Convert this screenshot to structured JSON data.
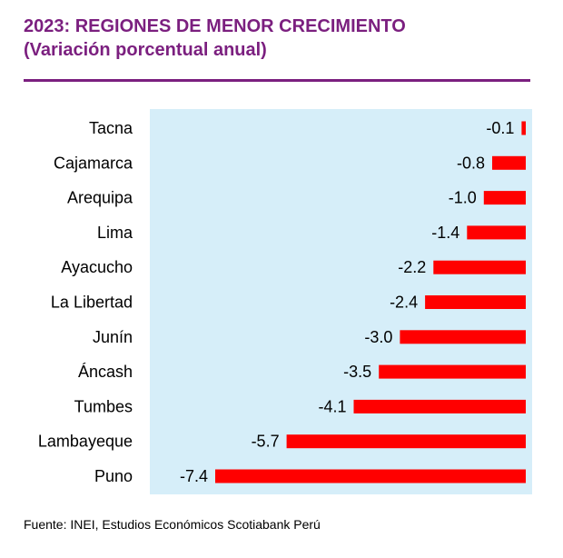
{
  "header": {
    "title_line1": "2023: REGIONES DE MENOR CRECIMIENTO",
    "title_line2": "(Variación porcentual anual)"
  },
  "source": "Fuente: INEI, Estudios Económicos Scotiabank Perú",
  "colors": {
    "title": "#7b1f7f",
    "bar": "#ff0000",
    "plot_background": "#d6eef9"
  },
  "chart_data": {
    "type": "bar",
    "orientation": "horizontal",
    "title": "2023: REGIONES DE MENOR CRECIMIENTO",
    "subtitle": "(Variación porcentual anual)",
    "categories": [
      "Tacna",
      "Cajamarca",
      "Arequipa",
      "Lima",
      "Ayacucho",
      "La Libertad",
      "Junín",
      "Áncash",
      "Tumbes",
      "Lambayeque",
      "Puno"
    ],
    "values": [
      -0.1,
      -0.8,
      -1.0,
      -1.4,
      -2.2,
      -2.4,
      -3.0,
      -3.5,
      -4.1,
      -5.7,
      -7.4
    ],
    "value_labels": [
      "-0.1",
      "-0.8",
      "-1.0",
      "-1.4",
      "-2.2",
      "-2.4",
      "-3.0",
      "-3.5",
      "-4.1",
      "-5.7",
      "-7.4"
    ],
    "xlim": [
      -7.4,
      0
    ],
    "grid": false,
    "legend": "none"
  }
}
